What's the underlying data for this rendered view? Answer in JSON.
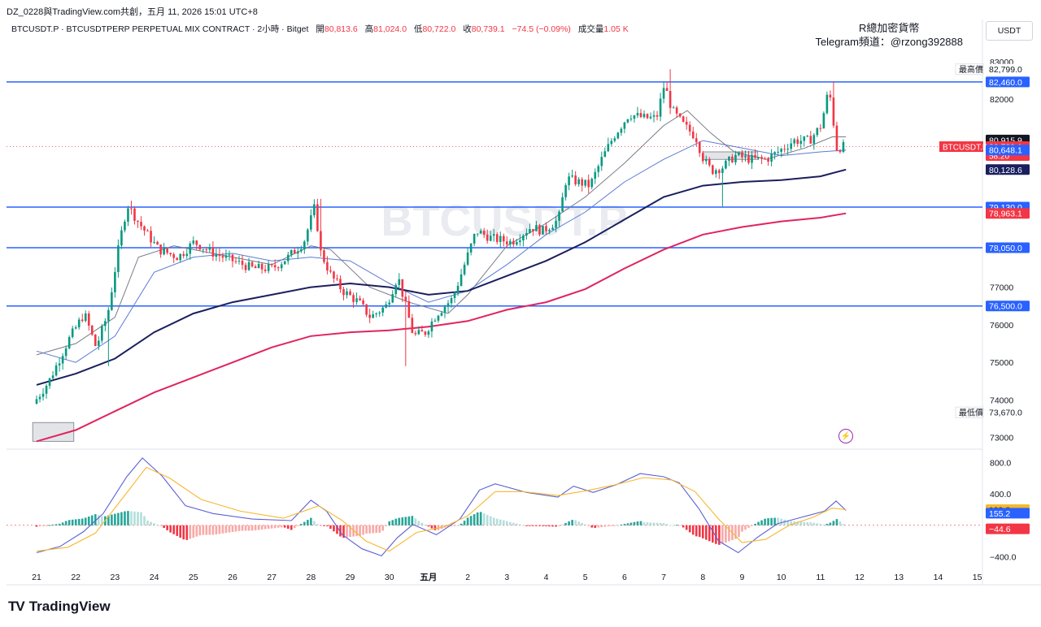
{
  "header": {
    "stamp": "DZ_0228與TradingView.com共創，五月 11, 2026 15:01 UTC+8"
  },
  "legend": {
    "symbol": "BTCUSDT.P · BTCUSDTPERP PERPETUAL MIX CONTRACT · 2小時 · Bitget",
    "open_label": "開",
    "open": "80,813.6",
    "high_label": "高",
    "high": "81,024.0",
    "low_label": "低",
    "low": "80,722.0",
    "close_label": "收",
    "close": "80,739.1",
    "change": "−74.5 (−0.09%)",
    "volume_label": "成交量",
    "volume": "1.05 K"
  },
  "corner_note": {
    "line1": "R總加密貨幣",
    "line2": "Telegram頻道：@rzong392888"
  },
  "axis_unit": "USDT",
  "logo_text": "TradingView",
  "colors": {
    "up": "#089981",
    "down": "#f23645",
    "level_line": "#2962ff",
    "ma_fast": "#787b86",
    "ma_mid": "#5b7bd5",
    "ma_slow": "#1a1f5e",
    "ma_long": "#e0245e",
    "macd": "#5b5fd6",
    "signal": "#f5b82e"
  },
  "chart_data": {
    "type": "candlestick",
    "symbol": "BTCUSDT.P",
    "timeframe": "2小時",
    "x_labels": [
      "21",
      "22",
      "23",
      "24",
      "25",
      "26",
      "27",
      "28",
      "29",
      "30",
      "五月",
      "2",
      "3",
      "4",
      "5",
      "6",
      "7",
      "8",
      "9",
      "10",
      "11",
      "12",
      "13",
      "14",
      "15"
    ],
    "x_domain": [
      0,
      24.9
    ],
    "price_axis": {
      "ylim": [
        72800,
        83300
      ],
      "ticks": [
        73000,
        74000,
        75000,
        76000,
        77000,
        82000,
        83000
      ]
    },
    "tick_labels": [
      "73,000.0",
      "74,000.0",
      "75,000.0",
      "76,000.0",
      "77,000.0",
      "82,000.0",
      "83,000.0"
    ],
    "horizontal_levels": [
      {
        "value": 82460,
        "label": "82,460.0"
      },
      {
        "value": 79130,
        "label": "79,130.0"
      },
      {
        "value": 78050,
        "label": "78,050.0"
      },
      {
        "value": 76500,
        "label": "76,500.0"
      }
    ],
    "price_markers": [
      {
        "value": 82799,
        "label": "82,799.0",
        "tag": "最高價",
        "style": "plain"
      },
      {
        "value": 80915.9,
        "label": "80,915.9",
        "style": "black"
      },
      {
        "value": 80739.1,
        "label": "80,739.1",
        "sub": "58:20",
        "tag": "BTCUSDT.P",
        "style": "red"
      },
      {
        "value": 80648.1,
        "label": "80,648.1",
        "style": "blue"
      },
      {
        "value": 80128.6,
        "label": "80,128.6",
        "style": "navy"
      },
      {
        "value": 78963.1,
        "label": "78,963.1",
        "style": "red"
      },
      {
        "value": 73670,
        "label": "73,670.0",
        "tag": "最低價",
        "style": "plain"
      }
    ],
    "price_path": [
      [
        0,
        73900
      ],
      [
        0.4,
        74500
      ],
      [
        0.9,
        75600
      ],
      [
        1.3,
        76300
      ],
      [
        1.6,
        75400
      ],
      [
        1.9,
        76300
      ],
      [
        2.2,
        78200
      ],
      [
        2.4,
        79200
      ],
      [
        2.7,
        78700
      ],
      [
        3.2,
        78000
      ],
      [
        3.7,
        77800
      ],
      [
        4.1,
        78200
      ],
      [
        4.6,
        77900
      ],
      [
        5.1,
        77700
      ],
      [
        5.6,
        77500
      ],
      [
        6.1,
        77500
      ],
      [
        6.5,
        77800
      ],
      [
        6.9,
        78200
      ],
      [
        7.2,
        79200
      ],
      [
        7.3,
        78000
      ],
      [
        7.6,
        77300
      ],
      [
        7.9,
        76900
      ],
      [
        8.3,
        76600
      ],
      [
        8.6,
        76200
      ],
      [
        9.0,
        76500
      ],
      [
        9.3,
        77300
      ],
      [
        9.5,
        76500
      ],
      [
        9.7,
        75700
      ],
      [
        10.0,
        75800
      ],
      [
        10.3,
        76300
      ],
      [
        10.7,
        76700
      ],
      [
        11.0,
        77600
      ],
      [
        11.3,
        78500
      ],
      [
        11.7,
        78300
      ],
      [
        12.2,
        78200
      ],
      [
        12.7,
        78600
      ],
      [
        13.0,
        78500
      ],
      [
        13.4,
        78800
      ],
      [
        13.6,
        79900
      ],
      [
        13.9,
        79800
      ],
      [
        14.2,
        79700
      ],
      [
        14.5,
        80400
      ],
      [
        14.8,
        81000
      ],
      [
        15.2,
        81600
      ],
      [
        15.6,
        81500
      ],
      [
        15.9,
        81500
      ],
      [
        16.1,
        82400
      ],
      [
        16.3,
        81700
      ],
      [
        16.6,
        81300
      ],
      [
        16.9,
        81000
      ],
      [
        17.1,
        80400
      ],
      [
        17.3,
        80100
      ],
      [
        17.6,
        80200
      ],
      [
        17.9,
        80500
      ],
      [
        18.3,
        80400
      ],
      [
        18.7,
        80400
      ],
      [
        19.0,
        80600
      ],
      [
        19.4,
        80900
      ],
      [
        19.8,
        80900
      ],
      [
        20.1,
        81300
      ],
      [
        20.3,
        82300
      ],
      [
        20.5,
        80700
      ],
      [
        20.65,
        80739
      ]
    ],
    "price_extremes": [
      {
        "x": 2.4,
        "value": 79300
      },
      {
        "x": 1.8,
        "value": 74900
      },
      {
        "x": 7.2,
        "value": 79350
      },
      {
        "x": 9.4,
        "value": 74900
      },
      {
        "x": 16.2,
        "value": 82799
      },
      {
        "x": 17.5,
        "value": 79150
      },
      {
        "x": 20.3,
        "value": 82460
      }
    ],
    "moving_averages": [
      {
        "name": "fast",
        "points": [
          [
            0,
            75200
          ],
          [
            1,
            75500
          ],
          [
            2,
            76200
          ],
          [
            2.6,
            77800
          ],
          [
            3.5,
            78100
          ],
          [
            5,
            77800
          ],
          [
            6,
            77600
          ],
          [
            7,
            78100
          ],
          [
            7.5,
            78000
          ],
          [
            8.5,
            77000
          ],
          [
            9.5,
            76600
          ],
          [
            10.5,
            76300
          ],
          [
            11,
            76800
          ],
          [
            12,
            78100
          ],
          [
            13,
            78700
          ],
          [
            14,
            79400
          ],
          [
            15,
            80300
          ],
          [
            16,
            81300
          ],
          [
            16.6,
            81700
          ],
          [
            17.2,
            81100
          ],
          [
            17.8,
            80600
          ],
          [
            18.6,
            80400
          ],
          [
            19.6,
            80700
          ],
          [
            20.3,
            81000
          ],
          [
            20.65,
            81000
          ]
        ]
      },
      {
        "name": "mid",
        "points": [
          [
            0,
            75300
          ],
          [
            1,
            75000
          ],
          [
            2,
            75700
          ],
          [
            3,
            77400
          ],
          [
            4,
            77800
          ],
          [
            5,
            77900
          ],
          [
            6,
            77700
          ],
          [
            7,
            77800
          ],
          [
            8,
            77700
          ],
          [
            9,
            77100
          ],
          [
            10,
            76600
          ],
          [
            11,
            76900
          ],
          [
            12,
            77600
          ],
          [
            13,
            78400
          ],
          [
            14,
            79000
          ],
          [
            15,
            79800
          ],
          [
            16,
            80400
          ],
          [
            17,
            80900
          ],
          [
            18,
            80700
          ],
          [
            19,
            80500
          ],
          [
            20,
            80600
          ],
          [
            20.65,
            80650
          ]
        ]
      },
      {
        "name": "slow",
        "points": [
          [
            0,
            74400
          ],
          [
            1,
            74700
          ],
          [
            2,
            75100
          ],
          [
            3,
            75800
          ],
          [
            4,
            76300
          ],
          [
            5,
            76600
          ],
          [
            6,
            76800
          ],
          [
            7,
            77000
          ],
          [
            8,
            77100
          ],
          [
            9,
            77000
          ],
          [
            10,
            76800
          ],
          [
            11,
            76900
          ],
          [
            12,
            77300
          ],
          [
            13,
            77700
          ],
          [
            14,
            78200
          ],
          [
            15,
            78800
          ],
          [
            16,
            79400
          ],
          [
            17,
            79700
          ],
          [
            18,
            79800
          ],
          [
            19,
            79850
          ],
          [
            20,
            79950
          ],
          [
            20.65,
            80128
          ]
        ]
      },
      {
        "name": "long",
        "points": [
          [
            0,
            72900
          ],
          [
            1,
            73200
          ],
          [
            2,
            73700
          ],
          [
            3,
            74200
          ],
          [
            4,
            74600
          ],
          [
            5,
            75000
          ],
          [
            6,
            75400
          ],
          [
            7,
            75700
          ],
          [
            8,
            75800
          ],
          [
            9,
            75850
          ],
          [
            10,
            75950
          ],
          [
            11,
            76100
          ],
          [
            12,
            76400
          ],
          [
            13,
            76600
          ],
          [
            14,
            76950
          ],
          [
            15,
            77500
          ],
          [
            16,
            78000
          ],
          [
            17,
            78400
          ],
          [
            18,
            78600
          ],
          [
            19,
            78750
          ],
          [
            20,
            78850
          ],
          [
            20.65,
            78963
          ]
        ]
      }
    ],
    "zones": [
      {
        "x": [
          17.0,
          18.4
        ],
        "y": [
          80400,
          80600
        ]
      },
      {
        "x": [
          -0.1,
          0.95
        ],
        "y": [
          72900,
          73400
        ]
      }
    ],
    "macd": {
      "ylim": [
        -500,
        900
      ],
      "ticks": [
        800,
        400,
        -400
      ],
      "tick_labels": [
        "800.0",
        "400.0",
        "−400.0"
      ],
      "markers": [
        {
          "value": 199.8,
          "label": "199.8",
          "style": "orange"
        },
        {
          "value": 155.2,
          "label": "155.2",
          "style": "blue"
        },
        {
          "value": -44.6,
          "label": "−44.6",
          "style": "red"
        }
      ],
      "macd_line": [
        [
          0,
          -350
        ],
        [
          0.6,
          -270
        ],
        [
          1.2,
          -80
        ],
        [
          1.7,
          150
        ],
        [
          2.3,
          620
        ],
        [
          2.7,
          860
        ],
        [
          3.2,
          630
        ],
        [
          3.8,
          250
        ],
        [
          4.5,
          150
        ],
        [
          5.5,
          80
        ],
        [
          6.5,
          60
        ],
        [
          7.0,
          320
        ],
        [
          7.4,
          180
        ],
        [
          7.8,
          -120
        ],
        [
          8.3,
          -300
        ],
        [
          8.8,
          -390
        ],
        [
          9.2,
          -160
        ],
        [
          9.6,
          10
        ],
        [
          10.2,
          -120
        ],
        [
          10.8,
          80
        ],
        [
          11.3,
          450
        ],
        [
          11.7,
          530
        ],
        [
          12.5,
          420
        ],
        [
          13.3,
          360
        ],
        [
          13.7,
          500
        ],
        [
          14.2,
          420
        ],
        [
          14.8,
          520
        ],
        [
          15.4,
          660
        ],
        [
          16.0,
          620
        ],
        [
          16.4,
          540
        ],
        [
          16.9,
          210
        ],
        [
          17.4,
          -200
        ],
        [
          17.9,
          -350
        ],
        [
          18.4,
          -150
        ],
        [
          18.9,
          20
        ],
        [
          19.5,
          100
        ],
        [
          20.1,
          180
        ],
        [
          20.4,
          310
        ],
        [
          20.65,
          190
        ]
      ],
      "signal_line": [
        [
          0,
          -330
        ],
        [
          0.8,
          -280
        ],
        [
          1.5,
          -100
        ],
        [
          2.2,
          350
        ],
        [
          2.8,
          740
        ],
        [
          3.4,
          600
        ],
        [
          4.2,
          330
        ],
        [
          5.2,
          180
        ],
        [
          6.3,
          90
        ],
        [
          7.2,
          250
        ],
        [
          7.8,
          60
        ],
        [
          8.4,
          -200
        ],
        [
          9.0,
          -330
        ],
        [
          9.7,
          -90
        ],
        [
          10.4,
          -20
        ],
        [
          11.0,
          120
        ],
        [
          11.7,
          430
        ],
        [
          12.4,
          430
        ],
        [
          13.3,
          380
        ],
        [
          14.0,
          440
        ],
        [
          14.7,
          510
        ],
        [
          15.5,
          610
        ],
        [
          16.2,
          580
        ],
        [
          16.8,
          430
        ],
        [
          17.4,
          80
        ],
        [
          18.0,
          -220
        ],
        [
          18.6,
          -180
        ],
        [
          19.2,
          0
        ],
        [
          19.8,
          100
        ],
        [
          20.3,
          220
        ],
        [
          20.65,
          200
        ]
      ]
    }
  }
}
